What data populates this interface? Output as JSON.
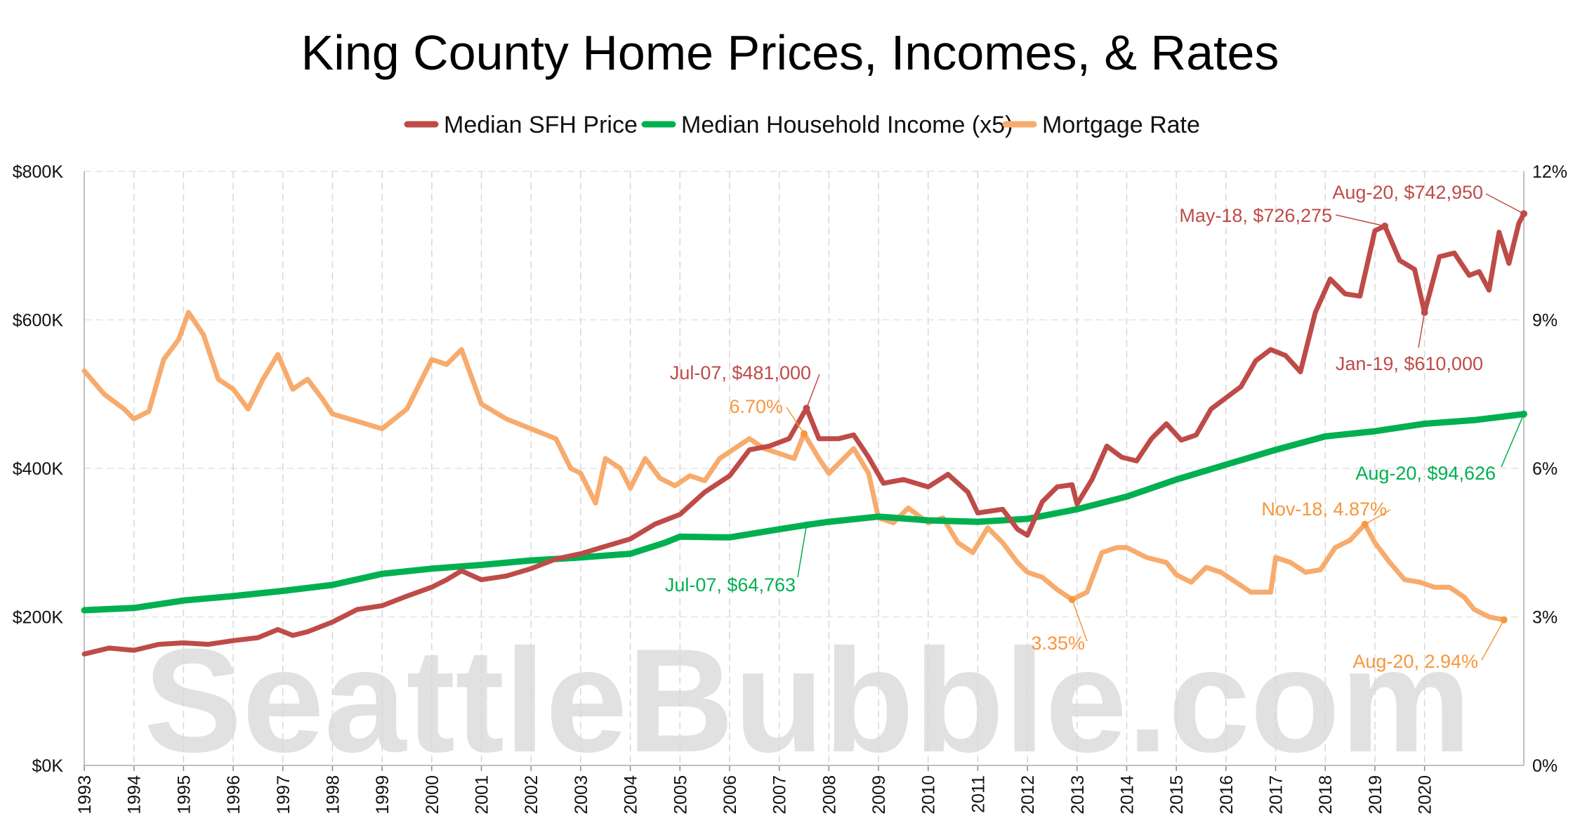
{
  "chart_data": {
    "type": "line",
    "title": "King County Home Prices, Incomes, & Rates",
    "watermark": "SeattleBubble.com",
    "x_tick_labels": [
      "1993",
      "1994",
      "1995",
      "1996",
      "1997",
      "1998",
      "1999",
      "2000",
      "2001",
      "2002",
      "2003",
      "2004",
      "2005",
      "2006",
      "2007",
      "2008",
      "2009",
      "2010",
      "2011",
      "2012",
      "2013",
      "2014",
      "2015",
      "2016",
      "2017",
      "2018",
      "2019",
      "2020"
    ],
    "xlim": [
      1993.0,
      2020.7
    ],
    "y_left": {
      "ylim": [
        0,
        800000
      ],
      "ticks": [
        0,
        200000,
        400000,
        600000,
        800000
      ],
      "tick_labels": [
        "$0K",
        "$200K",
        "$400K",
        "$600K",
        "$800K"
      ]
    },
    "y_right": {
      "ylim": [
        0,
        12
      ],
      "ticks": [
        0,
        3,
        6,
        9,
        12
      ],
      "tick_labels": [
        "0%",
        "3%",
        "6%",
        "9%",
        "12%"
      ]
    },
    "grid": true,
    "legend_position": "top-center",
    "series": [
      {
        "name": "Median SFH Price",
        "axis": "left",
        "color": "#be4b48",
        "points": [
          [
            1993.0,
            150000
          ],
          [
            1993.5,
            158000
          ],
          [
            1994.0,
            155000
          ],
          [
            1994.5,
            163000
          ],
          [
            1995.0,
            165000
          ],
          [
            1995.5,
            163000
          ],
          [
            1996.0,
            168000
          ],
          [
            1996.5,
            172000
          ],
          [
            1996.9,
            183000
          ],
          [
            1997.2,
            175000
          ],
          [
            1997.5,
            180000
          ],
          [
            1998.0,
            193000
          ],
          [
            1998.5,
            210000
          ],
          [
            1999.0,
            215000
          ],
          [
            1999.5,
            228000
          ],
          [
            2000.0,
            240000
          ],
          [
            2000.3,
            250000
          ],
          [
            2000.6,
            262000
          ],
          [
            2001.0,
            250000
          ],
          [
            2001.5,
            255000
          ],
          [
            2002.0,
            265000
          ],
          [
            2002.5,
            278000
          ],
          [
            2003.0,
            285000
          ],
          [
            2003.5,
            295000
          ],
          [
            2004.0,
            305000
          ],
          [
            2004.5,
            325000
          ],
          [
            2005.0,
            338000
          ],
          [
            2005.5,
            368000
          ],
          [
            2006.0,
            390000
          ],
          [
            2006.4,
            425000
          ],
          [
            2006.8,
            430000
          ],
          [
            2007.2,
            440000
          ],
          [
            2007.55,
            481000
          ],
          [
            2007.8,
            440000
          ],
          [
            2008.2,
            440000
          ],
          [
            2008.5,
            445000
          ],
          [
            2008.8,
            415000
          ],
          [
            2009.1,
            380000
          ],
          [
            2009.5,
            385000
          ],
          [
            2010.0,
            375000
          ],
          [
            2010.4,
            392000
          ],
          [
            2010.8,
            368000
          ],
          [
            2011.0,
            340000
          ],
          [
            2011.5,
            345000
          ],
          [
            2011.8,
            318000
          ],
          [
            2012.0,
            310000
          ],
          [
            2012.3,
            355000
          ],
          [
            2012.6,
            375000
          ],
          [
            2012.9,
            378000
          ],
          [
            2013.0,
            352000
          ],
          [
            2013.3,
            385000
          ],
          [
            2013.6,
            430000
          ],
          [
            2013.9,
            415000
          ],
          [
            2014.2,
            410000
          ],
          [
            2014.5,
            440000
          ],
          [
            2014.8,
            460000
          ],
          [
            2015.1,
            438000
          ],
          [
            2015.4,
            445000
          ],
          [
            2015.7,
            480000
          ],
          [
            2016.0,
            495000
          ],
          [
            2016.3,
            510000
          ],
          [
            2016.6,
            545000
          ],
          [
            2016.9,
            560000
          ],
          [
            2017.2,
            552000
          ],
          [
            2017.5,
            530000
          ],
          [
            2017.8,
            610000
          ],
          [
            2018.1,
            655000
          ],
          [
            2018.4,
            635000
          ],
          [
            2018.7,
            632000
          ],
          [
            2019.0,
            720000
          ],
          [
            2019.2,
            726275
          ],
          [
            2019.5,
            680000
          ],
          [
            2019.8,
            668000
          ],
          [
            2020.0,
            610000
          ],
          [
            2020.3,
            685000
          ],
          [
            2020.6,
            690000
          ],
          [
            2020.9,
            660000
          ],
          [
            2021.1,
            665000
          ],
          [
            2021.3,
            640000
          ],
          [
            2021.5,
            718000
          ],
          [
            2021.7,
            676000
          ],
          [
            2021.9,
            730000
          ],
          [
            2022.0,
            742950
          ]
        ]
      },
      {
        "name": "Median Household Income (x5)",
        "axis": "left",
        "color": "#00b050",
        "points": [
          [
            1993.0,
            209000
          ],
          [
            1994.0,
            212000
          ],
          [
            1995.0,
            222000
          ],
          [
            1996.0,
            228000
          ],
          [
            1997.0,
            235000
          ],
          [
            1998.0,
            243000
          ],
          [
            1999.0,
            258000
          ],
          [
            2000.0,
            265000
          ],
          [
            2001.0,
            270000
          ],
          [
            2002.0,
            276000
          ],
          [
            2003.0,
            280000
          ],
          [
            2004.0,
            285000
          ],
          [
            2004.7,
            300000
          ],
          [
            2005.0,
            308000
          ],
          [
            2006.0,
            307000
          ],
          [
            2007.0,
            318000
          ],
          [
            2007.55,
            323815
          ],
          [
            2008.0,
            328000
          ],
          [
            2009.0,
            335000
          ],
          [
            2010.0,
            330000
          ],
          [
            2011.0,
            328000
          ],
          [
            2012.0,
            332000
          ],
          [
            2013.0,
            345000
          ],
          [
            2014.0,
            362000
          ],
          [
            2015.0,
            385000
          ],
          [
            2016.0,
            405000
          ],
          [
            2017.0,
            425000
          ],
          [
            2018.0,
            443000
          ],
          [
            2019.0,
            450000
          ],
          [
            2020.0,
            460000
          ],
          [
            2021.0,
            465000
          ],
          [
            2022.0,
            473130
          ]
        ]
      },
      {
        "name": "Mortgage Rate",
        "axis": "right",
        "color": "#f7ab6d",
        "points": [
          [
            1993.0,
            7.97
          ],
          [
            1993.4,
            7.5
          ],
          [
            1993.8,
            7.2
          ],
          [
            1994.0,
            7.0
          ],
          [
            1994.3,
            7.15
          ],
          [
            1994.6,
            8.2
          ],
          [
            1994.9,
            8.6
          ],
          [
            1995.1,
            9.15
          ],
          [
            1995.4,
            8.7
          ],
          [
            1995.7,
            7.8
          ],
          [
            1996.0,
            7.6
          ],
          [
            1996.3,
            7.2
          ],
          [
            1996.6,
            7.8
          ],
          [
            1996.9,
            8.3
          ],
          [
            1997.2,
            7.6
          ],
          [
            1997.5,
            7.8
          ],
          [
            1997.8,
            7.4
          ],
          [
            1998.0,
            7.1
          ],
          [
            1998.5,
            6.95
          ],
          [
            1999.0,
            6.8
          ],
          [
            1999.5,
            7.2
          ],
          [
            2000.0,
            8.2
          ],
          [
            2000.3,
            8.1
          ],
          [
            2000.6,
            8.4
          ],
          [
            2001.0,
            7.3
          ],
          [
            2001.5,
            7.0
          ],
          [
            2002.0,
            6.8
          ],
          [
            2002.5,
            6.6
          ],
          [
            2002.8,
            6.0
          ],
          [
            2003.0,
            5.9
          ],
          [
            2003.3,
            5.3
          ],
          [
            2003.5,
            6.2
          ],
          [
            2003.8,
            6.0
          ],
          [
            2004.0,
            5.6
          ],
          [
            2004.3,
            6.2
          ],
          [
            2004.6,
            5.8
          ],
          [
            2004.9,
            5.65
          ],
          [
            2005.2,
            5.85
          ],
          [
            2005.5,
            5.75
          ],
          [
            2005.8,
            6.2
          ],
          [
            2006.1,
            6.4
          ],
          [
            2006.4,
            6.6
          ],
          [
            2006.7,
            6.4
          ],
          [
            2007.0,
            6.3
          ],
          [
            2007.3,
            6.2
          ],
          [
            2007.5,
            6.7
          ],
          [
            2007.8,
            6.2
          ],
          [
            2008.0,
            5.9
          ],
          [
            2008.2,
            6.1
          ],
          [
            2008.5,
            6.4
          ],
          [
            2008.8,
            5.9
          ],
          [
            2009.0,
            5.0
          ],
          [
            2009.3,
            4.9
          ],
          [
            2009.6,
            5.2
          ],
          [
            2010.0,
            4.9
          ],
          [
            2010.3,
            5.0
          ],
          [
            2010.6,
            4.5
          ],
          [
            2010.9,
            4.3
          ],
          [
            2011.2,
            4.8
          ],
          [
            2011.5,
            4.5
          ],
          [
            2011.8,
            4.1
          ],
          [
            2012.0,
            3.9
          ],
          [
            2012.3,
            3.8
          ],
          [
            2012.6,
            3.55
          ],
          [
            2012.9,
            3.35
          ],
          [
            2013.2,
            3.5
          ],
          [
            2013.5,
            4.3
          ],
          [
            2013.8,
            4.4
          ],
          [
            2014.0,
            4.4
          ],
          [
            2014.4,
            4.2
          ],
          [
            2014.8,
            4.1
          ],
          [
            2015.0,
            3.85
          ],
          [
            2015.3,
            3.7
          ],
          [
            2015.6,
            4.0
          ],
          [
            2015.9,
            3.9
          ],
          [
            2016.2,
            3.7
          ],
          [
            2016.5,
            3.5
          ],
          [
            2016.9,
            3.5
          ],
          [
            2017.0,
            4.2
          ],
          [
            2017.3,
            4.1
          ],
          [
            2017.6,
            3.9
          ],
          [
            2017.9,
            3.95
          ],
          [
            2018.2,
            4.4
          ],
          [
            2018.5,
            4.55
          ],
          [
            2018.8,
            4.87
          ],
          [
            2019.0,
            4.5
          ],
          [
            2019.3,
            4.1
          ],
          [
            2019.6,
            3.75
          ],
          [
            2019.9,
            3.7
          ],
          [
            2020.2,
            3.6
          ],
          [
            2020.5,
            3.6
          ],
          [
            2020.8,
            3.4
          ],
          [
            2021.0,
            3.15
          ],
          [
            2021.3,
            3.0
          ],
          [
            2021.6,
            2.94
          ]
        ]
      }
    ],
    "annotations": [
      {
        "text": "Aug-20, $742,950",
        "series": 0,
        "x": 2022.0,
        "y": 742950,
        "color": "#be4b48"
      },
      {
        "text": "May-18, $726,275",
        "series": 0,
        "x": 2019.2,
        "y": 726275,
        "color": "#be4b48"
      },
      {
        "text": "Jan-19, $610,000",
        "series": 0,
        "x": 2020.0,
        "y": 610000,
        "color": "#be4b48"
      },
      {
        "text": "Jul-07, $481,000",
        "series": 0,
        "x": 2007.55,
        "y": 481000,
        "color": "#be4b48"
      },
      {
        "text": "6.70%",
        "series": 2,
        "x": 2007.5,
        "y": 6.7,
        "color": "#f7963d"
      },
      {
        "text": "Aug-20, $94,626",
        "series": 1,
        "x": 2022.0,
        "y": 473130,
        "color": "#00b050"
      },
      {
        "text": "Jul-07, $64,763",
        "series": 1,
        "x": 2007.55,
        "y": 323815,
        "color": "#00b050"
      },
      {
        "text": "Nov-18, 4.87%",
        "series": 2,
        "x": 2018.8,
        "y": 4.87,
        "color": "#f7963d"
      },
      {
        "text": "3.35%",
        "series": 2,
        "x": 2012.9,
        "y": 3.35,
        "color": "#f7963d"
      },
      {
        "text": "Aug-20, 2.94%",
        "series": 2,
        "x": 2021.6,
        "y": 2.94,
        "color": "#f7963d"
      }
    ]
  }
}
